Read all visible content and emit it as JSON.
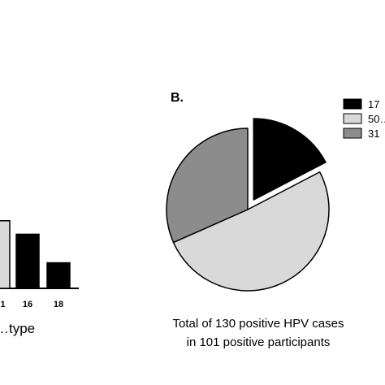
{
  "chart_data": [
    {
      "type": "bar",
      "categories": [
        "…1",
        "16",
        "18"
      ],
      "values": [
        45,
        36,
        17
      ],
      "xlabel": "…type",
      "colors": [
        "#d9d9d9",
        "#000000",
        "#000000"
      ]
    },
    {
      "type": "pie",
      "panel_label": "B.",
      "exploded_slice": 0,
      "slices": [
        {
          "label": "17",
          "value": 17,
          "color": "#000000"
        },
        {
          "label": "50…",
          "value": 50,
          "color": "#d9d9d9"
        },
        {
          "label": "31",
          "value": 31,
          "color": "#8c8c8c"
        }
      ],
      "caption": [
        "Total of 130 positive HPV cases",
        "in 101 positive participants"
      ]
    }
  ]
}
